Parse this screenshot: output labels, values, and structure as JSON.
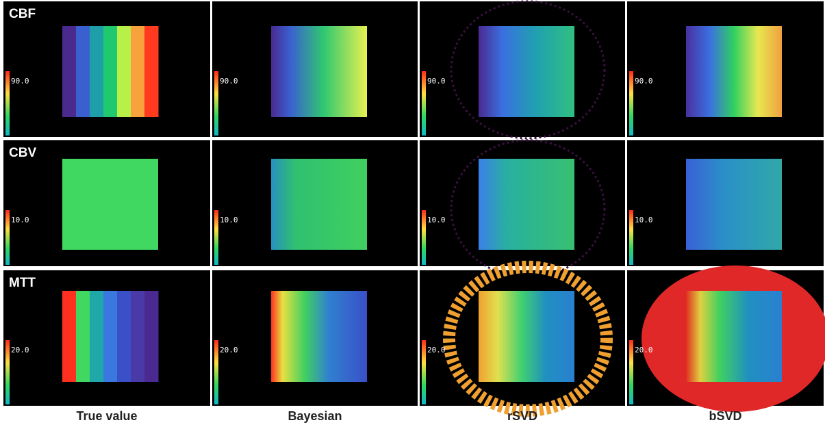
{
  "figure": {
    "rows": [
      {
        "label": "CBF",
        "scale": "90.0"
      },
      {
        "label": "CBV",
        "scale": "10.0"
      },
      {
        "label": "MTT",
        "scale": "20.0"
      }
    ],
    "columns": [
      "True value",
      "Bayesian",
      "rSVD",
      "bSVD"
    ]
  }
}
